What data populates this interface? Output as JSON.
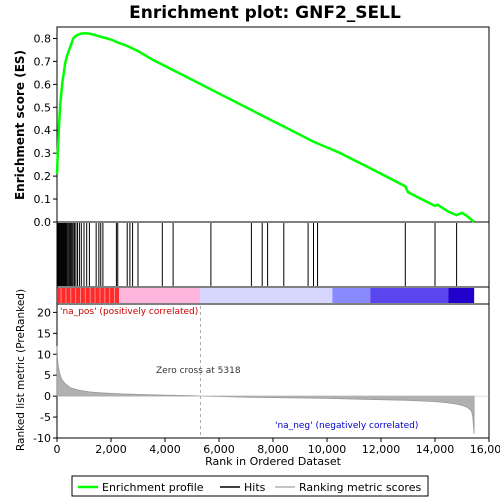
{
  "chart_data": {
    "type": "line",
    "title": "Enrichment plot: GNF2_SELL",
    "xlabel": "Rank in Ordered Dataset",
    "ylabel_top": "Enrichment score (ES)",
    "ylabel_bottom": "Ranked list metric (PreRanked)",
    "xlim": [
      0,
      16000
    ],
    "x_ticks": [
      0,
      2000,
      4000,
      6000,
      8000,
      10000,
      12000,
      14000,
      16000
    ],
    "x_tick_labels": [
      "0",
      "2,000",
      "4,000",
      "6,000",
      "8,000",
      "10,000",
      "12,000",
      "14,000",
      "16,000"
    ],
    "es_ylim": [
      0,
      0.85
    ],
    "es_ticks": [
      0.0,
      0.1,
      0.2,
      0.3,
      0.4,
      0.5,
      0.6,
      0.7,
      0.8
    ],
    "es_tick_labels": [
      "0.0",
      "0.1",
      "0.2",
      "0.3",
      "0.4",
      "0.5",
      "0.6",
      "0.7",
      "0.8"
    ],
    "metric_ylim": [
      -10,
      22
    ],
    "metric_ticks": [
      -10,
      -5,
      0,
      5,
      10,
      15,
      20
    ],
    "metric_tick_labels": [
      "-10",
      "-5",
      "0",
      "5",
      "10",
      "15",
      "20"
    ],
    "series": [
      {
        "name": "Enrichment profile",
        "color": "#00ff00",
        "x": [
          0,
          30,
          60,
          90,
          120,
          160,
          200,
          250,
          300,
          360,
          420,
          480,
          540,
          600,
          680,
          760,
          850,
          950,
          1100,
          1250,
          1400,
          1550,
          1700,
          1850,
          2000,
          2150,
          2300,
          2500,
          2700,
          3000,
          3500,
          4000,
          4500,
          5000,
          5500,
          6000,
          6500,
          7000,
          7500,
          8000,
          8500,
          9000,
          9500,
          9800,
          10000,
          10500,
          11000,
          11500,
          12000,
          12500,
          12900,
          13000,
          13500,
          14000,
          14100,
          14500,
          14800,
          15000,
          15200,
          15450
        ],
        "y": [
          0.21,
          0.3,
          0.38,
          0.45,
          0.51,
          0.56,
          0.61,
          0.65,
          0.69,
          0.72,
          0.74,
          0.76,
          0.78,
          0.8,
          0.81,
          0.815,
          0.82,
          0.822,
          0.822,
          0.82,
          0.815,
          0.81,
          0.805,
          0.8,
          0.795,
          0.788,
          0.78,
          0.772,
          0.762,
          0.745,
          0.71,
          0.68,
          0.65,
          0.62,
          0.59,
          0.56,
          0.53,
          0.5,
          0.47,
          0.44,
          0.41,
          0.38,
          0.35,
          0.335,
          0.325,
          0.3,
          0.27,
          0.24,
          0.21,
          0.18,
          0.155,
          0.13,
          0.1,
          0.07,
          0.075,
          0.045,
          0.03,
          0.04,
          0.025,
          0.0
        ]
      },
      {
        "name": "Hits",
        "color": "#000000",
        "x": [
          20,
          45,
          70,
          95,
          120,
          150,
          180,
          210,
          240,
          270,
          300,
          330,
          360,
          400,
          440,
          480,
          520,
          560,
          600,
          650,
          700,
          760,
          830,
          900,
          1000,
          1100,
          1200,
          1450,
          1550,
          1620,
          1700,
          2200,
          2250,
          2600,
          2700,
          2800,
          3000,
          3900,
          4300,
          5700,
          7200,
          7600,
          7800,
          8400,
          9300,
          9500,
          9650,
          12900,
          14000,
          14800
        ]
      },
      {
        "name": "Ranking metric scores",
        "color": "#b0b0b0",
        "x": [
          0,
          20,
          50,
          100,
          150,
          200,
          300,
          400,
          500,
          700,
          900,
          1200,
          1600,
          2000,
          2500,
          3000,
          4000,
          5000,
          5318,
          6000,
          7000,
          8000,
          9000,
          10000,
          11000,
          12000,
          13000,
          14000,
          14500,
          14800,
          15000,
          15200,
          15350,
          15400,
          15450
        ],
        "y": [
          12,
          9,
          7,
          5.5,
          4.5,
          3.8,
          3.0,
          2.5,
          2.0,
          1.6,
          1.3,
          1.0,
          0.8,
          0.65,
          0.5,
          0.4,
          0.25,
          0.1,
          0.0,
          -0.1,
          -0.25,
          -0.35,
          -0.45,
          -0.55,
          -0.7,
          -0.85,
          -1.0,
          -1.3,
          -1.6,
          -1.9,
          -2.2,
          -2.7,
          -3.5,
          -5.0,
          -9.0
        ]
      }
    ],
    "annotations": {
      "pos_label": "'na_pos' (positively correlated)",
      "neg_label": "'na_neg' (negatively correlated)",
      "zero_cross": "Zero cross at 5318",
      "zero_cross_x": 5318,
      "pos_color": "#cc0000",
      "neg_color": "#0000cc"
    },
    "legend": {
      "placement": "bottom",
      "entries": [
        {
          "label": "Enrichment profile",
          "color": "#00ff00"
        },
        {
          "label": "Hits",
          "color": "#000000"
        },
        {
          "label": "Ranking metric scores",
          "color": "#b0b0b0"
        }
      ]
    },
    "heatmap_colors": [
      "#ff0000",
      "#ff7777",
      "#ffb6dd",
      "#ffccee",
      "#d8d8ff",
      "#b8b8ff",
      "#8484ff",
      "#5555ee",
      "#2200cc"
    ],
    "heatmap_breaks": [
      0,
      2300,
      5300,
      10200,
      11600,
      14500,
      15450
    ]
  }
}
